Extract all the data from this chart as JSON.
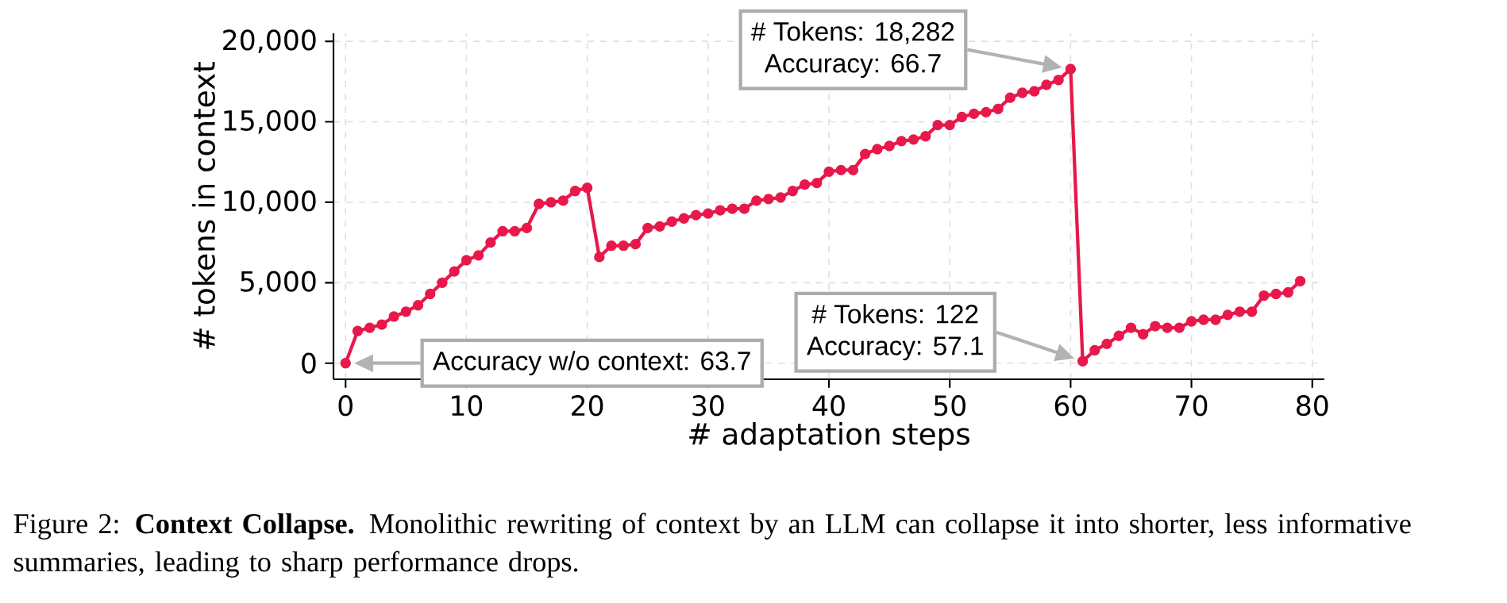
{
  "chart_data": {
    "type": "line",
    "xlabel": "# adaptation steps",
    "ylabel": "# tokens in context",
    "x": [
      0,
      1,
      2,
      3,
      4,
      5,
      6,
      7,
      8,
      9,
      10,
      11,
      12,
      13,
      14,
      15,
      16,
      17,
      18,
      19,
      20,
      21,
      22,
      23,
      24,
      25,
      26,
      27,
      28,
      29,
      30,
      31,
      32,
      33,
      34,
      35,
      36,
      37,
      38,
      39,
      40,
      41,
      42,
      43,
      44,
      45,
      46,
      47,
      48,
      49,
      50,
      51,
      52,
      53,
      54,
      55,
      56,
      57,
      58,
      59,
      60,
      61,
      62,
      63,
      64,
      65,
      66,
      67,
      68,
      69,
      70,
      71,
      72,
      73,
      74,
      75,
      76,
      77,
      78,
      79
    ],
    "values": [
      0,
      2000,
      2200,
      2400,
      2900,
      3200,
      3600,
      4300,
      5000,
      5700,
      6400,
      6700,
      7500,
      8200,
      8200,
      8400,
      9900,
      10000,
      10100,
      10700,
      10900,
      6600,
      7300,
      7300,
      7400,
      8400,
      8500,
      8800,
      9000,
      9200,
      9300,
      9500,
      9600,
      9600,
      10100,
      10200,
      10300,
      10700,
      11100,
      11200,
      11900,
      12000,
      12000,
      13000,
      13300,
      13500,
      13800,
      13900,
      14100,
      14800,
      14800,
      15300,
      15500,
      15600,
      15800,
      16500,
      16800,
      16900,
      17300,
      17600,
      18282,
      122,
      800,
      1200,
      1700,
      2200,
      1800,
      2300,
      2200,
      2200,
      2600,
      2700,
      2700,
      3000,
      3200,
      3200,
      4200,
      4300,
      4400,
      5100
    ],
    "color": "#e8184a",
    "marker": "circle",
    "line_style": "solid",
    "grid": true,
    "xlim": [
      -1,
      81
    ],
    "ylim": [
      -1000,
      20500
    ],
    "xticks": [
      0,
      10,
      20,
      30,
      40,
      50,
      60,
      70,
      80
    ],
    "yticks": [
      0,
      {
        "value": 5000,
        "label": "5,000"
      },
      {
        "value": 10000,
        "label": "10,000"
      },
      {
        "value": 15000,
        "label": "15,000"
      },
      {
        "value": 20000,
        "label": "20,000"
      }
    ],
    "annotations": [
      "Accuracy w/o context: 63.7",
      "# Tokens: 18,282",
      "Accuracy: 66.7",
      "# Tokens: 122",
      "Accuracy: 57.1",
      "Figure 2: **Context Collapse.** Monolithic rewriting of context by an LLM can collapse it into shorter, less informative summaries, leading to sharp performance drops."
    ]
  }
}
